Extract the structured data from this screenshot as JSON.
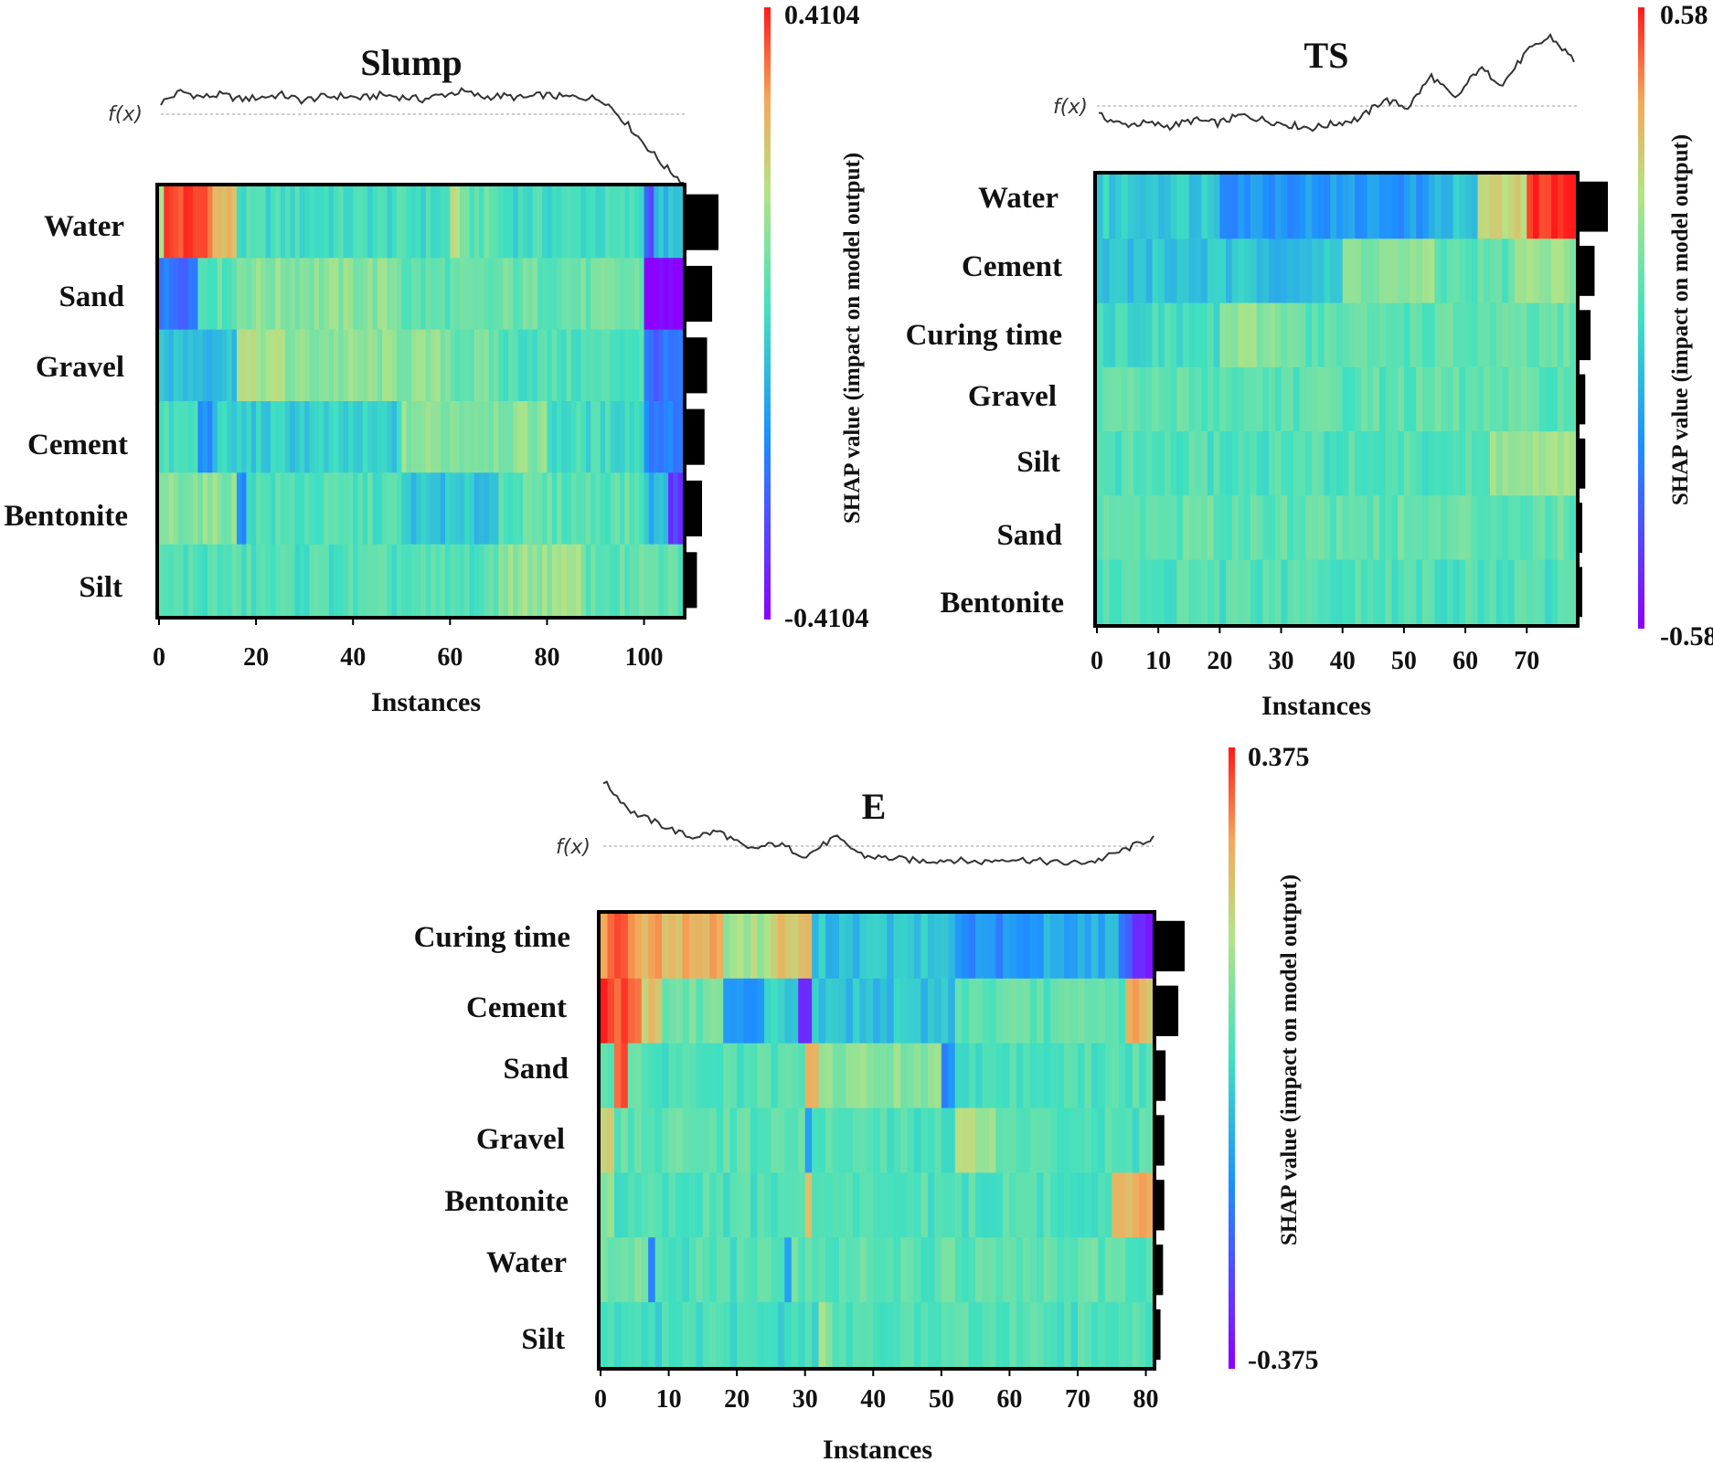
{
  "chart_data": [
    {
      "type": "heatmap",
      "title": "Slump",
      "xlabel": "Instances",
      "fx_label": "f(x)",
      "features": [
        "Water",
        "Sand",
        "Gravel",
        "Cement",
        "Bentonite",
        "Silt"
      ],
      "xlim": [
        0,
        108
      ],
      "xticks": [
        0,
        20,
        40,
        60,
        80,
        100
      ],
      "colorbar": {
        "min": -0.4104,
        "max": 0.4104,
        "min_label": "-0.4104",
        "max_label": "0.4104",
        "label": "SHAP value (impact on model output)"
      },
      "importance": [
        0.26,
        0.21,
        0.17,
        0.15,
        0.13,
        0.09
      ],
      "fx_trend": [
        0.45,
        0.55,
        0.5,
        0.52,
        0.48,
        0.5,
        0.52,
        0.47,
        0.5,
        0.51,
        0.49,
        0.52,
        0.5,
        0.48,
        0.52,
        0.55,
        0.5,
        0.51,
        0.49,
        0.52,
        0.5,
        0.5,
        0.48,
        0.3,
        0.1,
        -0.1,
        -0.25
      ],
      "segments": [
        [
          [
            0,
            1,
            0.45
          ],
          [
            1,
            11,
            0.9
          ],
          [
            11,
            16,
            0.6
          ],
          [
            16,
            60,
            0.0
          ],
          [
            60,
            62,
            0.45
          ],
          [
            62,
            70,
            0.1
          ],
          [
            70,
            100,
            0.0
          ],
          [
            100,
            102,
            -0.6
          ],
          [
            102,
            108,
            -0.2
          ]
        ],
        [
          [
            0,
            8,
            -0.5
          ],
          [
            8,
            16,
            0.1
          ],
          [
            16,
            50,
            0.25
          ],
          [
            50,
            70,
            0.1
          ],
          [
            70,
            100,
            0.15
          ],
          [
            100,
            108,
            -1.0
          ]
        ],
        [
          [
            0,
            16,
            -0.15
          ],
          [
            16,
            18,
            0.45
          ],
          [
            18,
            26,
            0.35
          ],
          [
            26,
            60,
            0.25
          ],
          [
            60,
            70,
            0.15
          ],
          [
            70,
            100,
            0.05
          ],
          [
            100,
            108,
            -0.55
          ]
        ],
        [
          [
            0,
            8,
            0.0
          ],
          [
            8,
            11,
            -0.4
          ],
          [
            11,
            50,
            -0.1
          ],
          [
            50,
            80,
            0.25
          ],
          [
            80,
            100,
            0.0
          ],
          [
            100,
            108,
            -0.45
          ]
        ],
        [
          [
            0,
            16,
            0.25
          ],
          [
            16,
            18,
            -0.4
          ],
          [
            18,
            50,
            0.05
          ],
          [
            50,
            70,
            -0.15
          ],
          [
            70,
            100,
            0.1
          ],
          [
            100,
            105,
            -0.2
          ],
          [
            105,
            108,
            -0.75
          ]
        ],
        [
          [
            0,
            70,
            0.05
          ],
          [
            70,
            88,
            0.3
          ],
          [
            88,
            108,
            0.1
          ]
        ]
      ]
    },
    {
      "type": "heatmap",
      "title": "TS",
      "xlabel": "Instances",
      "fx_label": "f(x)",
      "features": [
        "Water",
        "Cement",
        "Curing time",
        "Gravel",
        "Silt",
        "Sand",
        "Bentonite"
      ],
      "xlim": [
        0,
        78
      ],
      "xticks": [
        0,
        10,
        20,
        30,
        40,
        50,
        60,
        70
      ],
      "colorbar": {
        "min": -0.58,
        "max": 0.58,
        "min_label": "-0.58",
        "max_label": "0.58",
        "label": "SHAP value (impact on model output)"
      },
      "importance": [
        0.22,
        0.12,
        0.09,
        0.05,
        0.05,
        0.02,
        0.02
      ],
      "fx_trend": [
        0.5,
        0.44,
        0.45,
        0.43,
        0.47,
        0.45,
        0.5,
        0.47,
        0.44,
        0.42,
        0.45,
        0.48,
        0.6,
        0.55,
        0.75,
        0.6,
        0.8,
        0.7,
        0.9,
        1.0,
        0.85
      ],
      "segments": [
        [
          [
            0,
            20,
            -0.1
          ],
          [
            20,
            55,
            -0.35
          ],
          [
            55,
            62,
            -0.15
          ],
          [
            62,
            70,
            0.45
          ],
          [
            70,
            78,
            0.95
          ]
        ],
        [
          [
            0,
            40,
            -0.15
          ],
          [
            40,
            55,
            0.25
          ],
          [
            55,
            68,
            0.1
          ],
          [
            68,
            78,
            0.3
          ]
        ],
        [
          [
            0,
            20,
            0.0
          ],
          [
            20,
            33,
            0.25
          ],
          [
            33,
            78,
            0.1
          ]
        ],
        [
          [
            0,
            78,
            0.1
          ]
        ],
        [
          [
            0,
            64,
            0.05
          ],
          [
            64,
            78,
            0.3
          ]
        ],
        [
          [
            0,
            78,
            0.12
          ]
        ],
        [
          [
            0,
            78,
            0.05
          ]
        ]
      ]
    },
    {
      "type": "heatmap",
      "title": "E",
      "xlabel": "Instances",
      "fx_label": "f(x)",
      "features": [
        "Curing time",
        "Cement",
        "Sand",
        "Gravel",
        "Bentonite",
        "Water",
        "Silt"
      ],
      "xlim": [
        0,
        81
      ],
      "xticks": [
        0,
        10,
        20,
        30,
        40,
        50,
        60,
        70,
        80
      ],
      "colorbar": {
        "min": -0.375,
        "max": 0.375,
        "min_label": "-0.375",
        "max_label": "0.375",
        "label": "SHAP value (impact on model output)"
      },
      "importance": [
        0.23,
        0.18,
        0.08,
        0.07,
        0.07,
        0.06,
        0.04
      ],
      "fx_trend": [
        1.0,
        0.75,
        0.65,
        0.55,
        0.6,
        0.45,
        0.5,
        0.4,
        0.55,
        0.4,
        0.38,
        0.36,
        0.37,
        0.35,
        0.38,
        0.36,
        0.34,
        0.36,
        0.45,
        0.55
      ],
      "segments": [
        [
          [
            0,
            2,
            0.8
          ],
          [
            2,
            4,
            0.95
          ],
          [
            4,
            18,
            0.65
          ],
          [
            18,
            25,
            0.35
          ],
          [
            25,
            31,
            0.55
          ],
          [
            31,
            52,
            -0.15
          ],
          [
            52,
            65,
            -0.4
          ],
          [
            65,
            76,
            -0.25
          ],
          [
            76,
            78,
            -0.5
          ],
          [
            78,
            81,
            -0.85
          ]
        ],
        [
          [
            0,
            6,
            0.9
          ],
          [
            6,
            9,
            0.55
          ],
          [
            9,
            18,
            0.15
          ],
          [
            18,
            24,
            -0.45
          ],
          [
            24,
            29,
            -0.1
          ],
          [
            29,
            31,
            -0.8
          ],
          [
            31,
            52,
            -0.15
          ],
          [
            52,
            77,
            0.1
          ],
          [
            77,
            81,
            0.65
          ]
        ],
        [
          [
            0,
            2,
            0.15
          ],
          [
            2,
            4,
            0.85
          ],
          [
            4,
            30,
            0.05
          ],
          [
            30,
            32,
            0.6
          ],
          [
            32,
            50,
            0.25
          ],
          [
            50,
            52,
            -0.45
          ],
          [
            52,
            81,
            0.05
          ]
        ],
        [
          [
            0,
            2,
            0.55
          ],
          [
            2,
            30,
            0.1
          ],
          [
            30,
            31,
            -0.4
          ],
          [
            31,
            52,
            0.05
          ],
          [
            52,
            58,
            0.35
          ],
          [
            58,
            81,
            0.05
          ]
        ],
        [
          [
            0,
            2,
            0.3
          ],
          [
            2,
            30,
            0.05
          ],
          [
            30,
            31,
            0.5
          ],
          [
            31,
            75,
            0.05
          ],
          [
            75,
            78,
            0.55
          ],
          [
            78,
            81,
            0.7
          ]
        ],
        [
          [
            0,
            7,
            0.2
          ],
          [
            7,
            8,
            -0.4
          ],
          [
            8,
            27,
            0.05
          ],
          [
            27,
            28,
            -0.4
          ],
          [
            28,
            81,
            0.1
          ]
        ],
        [
          [
            0,
            32,
            0.0
          ],
          [
            32,
            34,
            0.3
          ],
          [
            34,
            81,
            0.05
          ]
        ]
      ]
    }
  ]
}
